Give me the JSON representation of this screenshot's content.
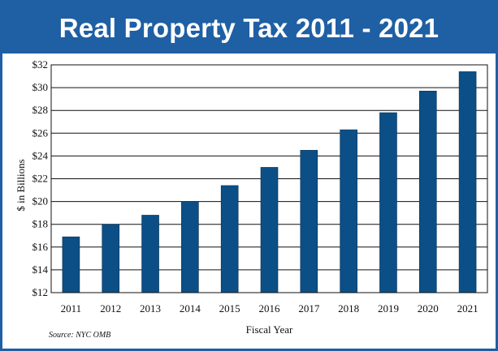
{
  "title": "Real Property Tax 2011 - 2021",
  "source": "Source: NYC OMB",
  "colors": {
    "frame": "#1f5fa4",
    "bar": "#0b4f86",
    "grid": "#111111"
  },
  "chart_data": {
    "type": "bar",
    "title": "Real Property Tax 2011 - 2021",
    "xlabel": "Fiscal Year",
    "ylabel": "$ in Billions",
    "categories": [
      "2011",
      "2012",
      "2013",
      "2014",
      "2015",
      "2016",
      "2017",
      "2018",
      "2019",
      "2020",
      "2021"
    ],
    "values": [
      16.9,
      18.0,
      18.8,
      20.0,
      21.4,
      23.0,
      24.5,
      26.3,
      27.8,
      29.7,
      31.4
    ],
    "ylim": [
      12,
      32
    ],
    "yticks": [
      12,
      14,
      16,
      18,
      20,
      22,
      24,
      26,
      28,
      30,
      32
    ],
    "ytick_labels": [
      "$12",
      "$14",
      "$16",
      "$18",
      "$20",
      "$22",
      "$24",
      "$26",
      "$28",
      "$30",
      "$32"
    ],
    "grid": true,
    "legend": "none"
  }
}
